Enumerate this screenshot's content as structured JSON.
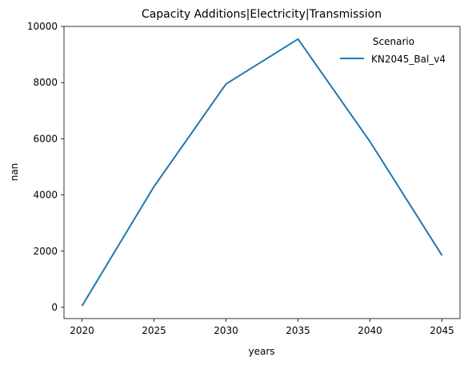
{
  "chart_data": {
    "type": "line",
    "title": "Capacity Additions|Electricity|Transmission",
    "xlabel": "years",
    "ylabel": "nan",
    "x": [
      2020,
      2025,
      2030,
      2035,
      2040,
      2045
    ],
    "xticks": [
      "2020",
      "2025",
      "2030",
      "2035",
      "2040",
      "2045"
    ],
    "yticks": [
      "0",
      "2000",
      "4000",
      "6000",
      "8000",
      "10000"
    ],
    "xlim": [
      2018.75,
      2046.25
    ],
    "ylim": [
      -400,
      10000
    ],
    "grid": false,
    "legend": {
      "title": "Scenario",
      "placement": "top-right"
    },
    "series": [
      {
        "name": "KN2045_Bal_v4",
        "color": "#1f77b4",
        "values": [
          50,
          4300,
          7950,
          9550,
          5900,
          1850
        ]
      }
    ]
  }
}
